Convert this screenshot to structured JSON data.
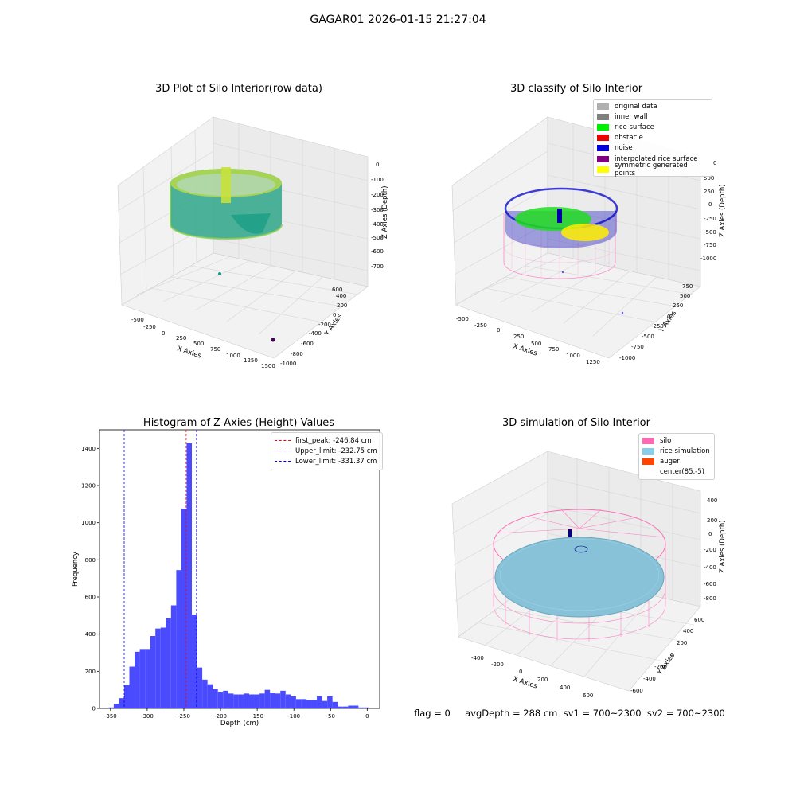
{
  "suptitle": "GAGAR01 2026-01-15 21:27:04",
  "panel1": {
    "title": "3D Plot of Silo Interior(row data)",
    "xlabel": "X Axies",
    "ylabel": "Y Axies",
    "zlabel": "Z Axies (Depth)",
    "x_ticks": [
      "-500",
      "-250",
      "0",
      "250",
      "500",
      "750",
      "1000",
      "1250",
      "1500"
    ],
    "y_ticks": [
      "-1000",
      "-800",
      "-600",
      "-400",
      "-200",
      "0",
      "200",
      "400",
      "600"
    ],
    "z_ticks": [
      "0",
      "-100",
      "-200",
      "-300",
      "-400",
      "-500",
      "-600",
      "-700"
    ]
  },
  "panel2": {
    "title": "3D classify of Silo Interior",
    "xlabel": "X Axies",
    "ylabel": "Y Axies",
    "zlabel": "Z Axies (Depth)",
    "x_ticks": [
      "-500",
      "-250",
      "0",
      "250",
      "500",
      "750",
      "1000",
      "1250"
    ],
    "y_ticks": [
      "-1000",
      "-750",
      "-500",
      "-250",
      "0",
      "250",
      "500",
      "750"
    ],
    "z_ticks": [
      "500",
      "250",
      "0",
      "-250",
      "-500",
      "-750",
      "-1000"
    ],
    "z_top_tick": "0",
    "legend": [
      {
        "label": "original data",
        "color": "#b0b0b0"
      },
      {
        "label": "inner wall",
        "color": "#808080"
      },
      {
        "label": "rice surface",
        "color": "#00ee00"
      },
      {
        "label": "obstacle",
        "color": "#ee0000"
      },
      {
        "label": "noise",
        "color": "#0000dd"
      },
      {
        "label": "interpolated rice surface",
        "color": "#800080"
      },
      {
        "label": "symmetric generated points",
        "color": "#ffff00"
      }
    ]
  },
  "panel4": {
    "title": "3D simulation of Silo Interior",
    "xlabel": "X Axies",
    "ylabel": "Y Axies",
    "zlabel": "Z Axies (Depth)",
    "x_ticks": [
      "-400",
      "-200",
      "0",
      "200",
      "400",
      "600"
    ],
    "y_ticks": [
      "-600",
      "-400",
      "-200",
      "0",
      "200",
      "400",
      "600"
    ],
    "z_ticks": [
      "400",
      "200",
      "0",
      "-200",
      "-400",
      "-600",
      "-800"
    ],
    "legend": [
      {
        "label": "silo",
        "color": "#ff69b4"
      },
      {
        "label": "rice simulation",
        "color": "#87ceeb"
      },
      {
        "label": "auger",
        "color": "#ff4500"
      },
      {
        "label": "center(85,-5)",
        "color": ""
      }
    ]
  },
  "footer": "flag = 0     avgDepth = 288 cm  sv1 = 700~2300  sv2 = 700~2300",
  "chart_data": [
    {
      "type": "bar",
      "title": "Histogram of Z-Axies (Height) Values",
      "xlabel": "Depth (cm)",
      "ylabel": "Frequency",
      "xlim": [
        -365,
        17
      ],
      "ylim": [
        0,
        1500
      ],
      "x_ticks": [
        -350,
        -300,
        -250,
        -200,
        -150,
        -100,
        -50,
        0
      ],
      "y_ticks": [
        0,
        200,
        400,
        600,
        800,
        1000,
        1200,
        1400
      ],
      "bin_width": 7.1,
      "bin_starts": [
        -352.7,
        -345.6,
        -338.5,
        -331.4,
        -324.3,
        -317.2,
        -310.1,
        -303,
        -295.9,
        -288.8,
        -281.7,
        -274.6,
        -267.5,
        -260.4,
        -253.3,
        -246.2,
        -239.1,
        -232,
        -224.9,
        -217.8,
        -210.7,
        -203.6,
        -196.5,
        -189.4,
        -182.3,
        -175.2,
        -168.1,
        -161,
        -153.9,
        -146.8,
        -139.7,
        -132.6,
        -125.5,
        -118.4,
        -111.3,
        -104.2,
        -97.1,
        -90,
        -82.9,
        -75.8,
        -68.7,
        -61.6,
        -54.5,
        -47.4,
        -40.3,
        -33.2,
        -26.1,
        -19,
        -11.9,
        -4.8
      ],
      "values": [
        5,
        25,
        55,
        125,
        225,
        305,
        320,
        320,
        390,
        430,
        435,
        485,
        555,
        745,
        1075,
        1430,
        505,
        220,
        155,
        130,
        105,
        90,
        95,
        80,
        75,
        75,
        80,
        75,
        75,
        80,
        100,
        85,
        80,
        95,
        75,
        65,
        50,
        50,
        45,
        45,
        65,
        40,
        65,
        35,
        10,
        10,
        15,
        15,
        5,
        5
      ],
      "lines": [
        {
          "label": "first_peak: -246.84 cm",
          "value": -246.84,
          "color": "#ff0000"
        },
        {
          "label": "Upper_limit: -232.75 cm",
          "value": -232.75,
          "color": "#0000ff"
        },
        {
          "label": "Lower_limit: -331.37 cm",
          "value": -331.37,
          "color": "#0000ff"
        }
      ],
      "bar_color": "#4a4aff"
    }
  ]
}
